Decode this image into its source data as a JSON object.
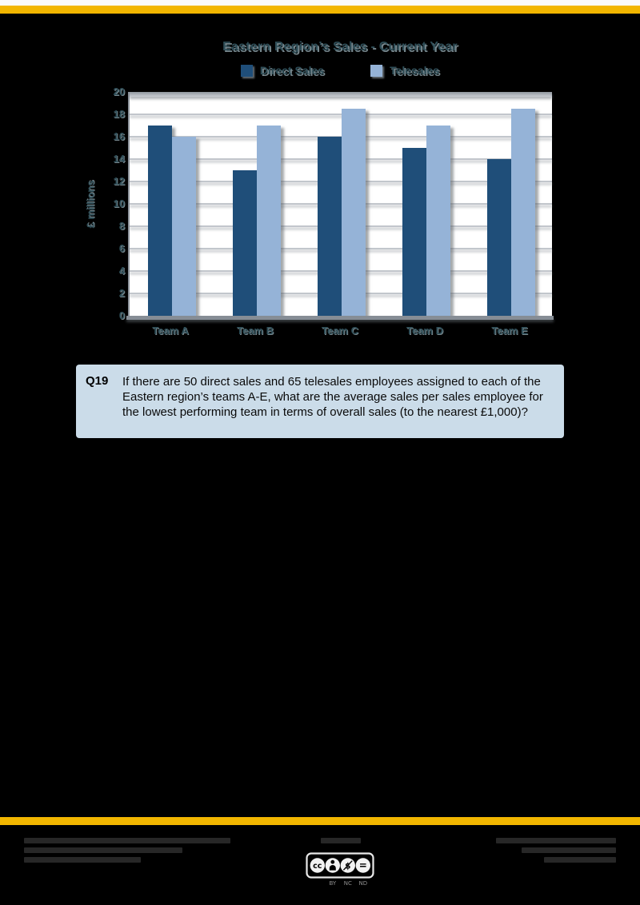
{
  "page": {
    "background": "#000000",
    "accent_bar_color": "#F2B600",
    "top_strip_color": "#FAFAFA"
  },
  "chart_data": {
    "type": "bar",
    "title": "Eastern Region’s Sales - Current Year",
    "ylabel": "£ millions",
    "xlabel": "",
    "ylim": [
      0,
      20
    ],
    "ytick_step": 2,
    "grid": true,
    "legend_position": "top-center",
    "plot_background": "#FFFFFF",
    "text_color": "#2E4D57",
    "categories": [
      "Team A",
      "Team B",
      "Team C",
      "Team D",
      "Team E"
    ],
    "series": [
      {
        "name": "Direct Sales",
        "color": "#1F4E79",
        "values": [
          17,
          13,
          16,
          15,
          14
        ]
      },
      {
        "name": "Telesales",
        "color": "#95B3D7",
        "values": [
          16,
          17,
          18.5,
          17,
          18.5
        ]
      }
    ]
  },
  "question": {
    "number": "Q19",
    "text": "If there are 50 direct sales and 65 telesales employees assigned to each of the Eastern region’s teams A-E, what are the average sales per sales employee for the lowest performing team in terms of overall sales (to the nearest £1,000)?",
    "box_color": "#CBDCE9"
  },
  "footer": {
    "license_badge": {
      "name": "creative-commons-by-nc-nd",
      "glyphs": {
        "cc": "cc",
        "nc": "$",
        "nd": "="
      },
      "labels": [
        "BY",
        "NC",
        "ND"
      ]
    }
  }
}
